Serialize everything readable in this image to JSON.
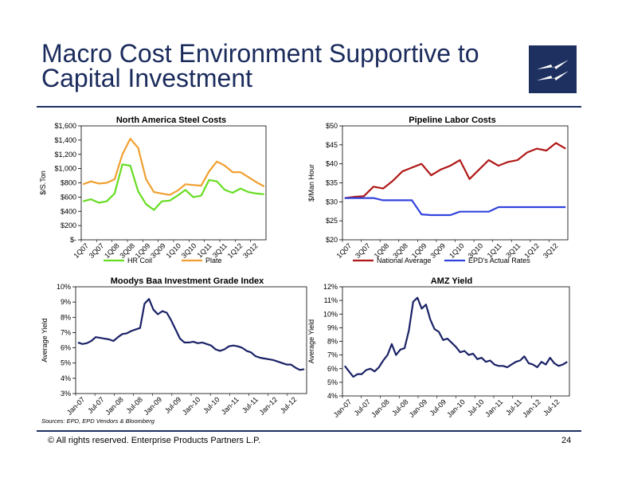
{
  "slide": {
    "title": "Macro Cost Environment Supportive to Capital Investment",
    "sources": "Sources:  EPD, EPD Vendors & Bloomberg",
    "footer": "©  All rights reserved. Enterprise Products Partners L.P.",
    "page_number": "24"
  },
  "chart_data": [
    {
      "id": "steel",
      "type": "line",
      "title": "North America Steel Costs",
      "ylabel": "$/S.Ton",
      "ylim": [
        0,
        1600
      ],
      "yticks": [
        0,
        200,
        400,
        600,
        800,
        1000,
        1200,
        1400,
        1600
      ],
      "ytick_labels": [
        "$-",
        "$200",
        "$400",
        "$600",
        "$800",
        "$1,000",
        "$1,200",
        "$1,400",
        "$1,600"
      ],
      "x_labels": [
        "1Q07",
        "3Q07",
        "1Q08",
        "3Q08",
        "1Q09",
        "3Q09",
        "1Q10",
        "3Q10",
        "1Q11",
        "3Q11",
        "1Q12",
        "3Q12"
      ],
      "x_count": 24,
      "legend": "bottom",
      "series": [
        {
          "name": "HR Coil",
          "color": "#66dd22",
          "values": [
            540,
            570,
            520,
            540,
            650,
            1060,
            1040,
            680,
            500,
            420,
            540,
            550,
            620,
            700,
            600,
            620,
            840,
            820,
            700,
            660,
            720,
            670,
            650,
            640
          ]
        },
        {
          "name": "Plate",
          "color": "#f0a030",
          "values": [
            780,
            820,
            790,
            800,
            850,
            1200,
            1420,
            1290,
            850,
            670,
            650,
            630,
            690,
            780,
            770,
            760,
            960,
            1100,
            1040,
            950,
            950,
            880,
            810,
            750
          ]
        }
      ]
    },
    {
      "id": "labor",
      "type": "line",
      "title": "Pipeline Labor Costs",
      "ylabel": "$/Man Hour",
      "ylim": [
        20,
        50
      ],
      "yticks": [
        20,
        25,
        30,
        35,
        40,
        45,
        50
      ],
      "ytick_labels": [
        "$20",
        "$25",
        "$30",
        "$35",
        "$40",
        "$45",
        "$50"
      ],
      "x_labels": [
        "1Q07",
        "3Q07",
        "1Q08",
        "3Q08",
        "1Q09",
        "3Q09",
        "1Q10",
        "3Q10",
        "1Q11",
        "3Q11",
        "1Q12",
        "3Q12"
      ],
      "x_count": 24,
      "legend": "bottom",
      "series": [
        {
          "name": "National Average",
          "color": "#b01818",
          "values": [
            31,
            31.3,
            31.5,
            34,
            33.5,
            35.5,
            38,
            39,
            40,
            37,
            38.5,
            39.5,
            41,
            36,
            38.5,
            41,
            39.5,
            40.5,
            41,
            43,
            44,
            43.5,
            45.5,
            44
          ]
        },
        {
          "name": "EPD's Actual Rates",
          "color": "#3344dd",
          "values": [
            31,
            31,
            31,
            31,
            30.4,
            30.4,
            30.4,
            30.4,
            26.7,
            26.5,
            26.5,
            26.5,
            27.4,
            27.4,
            27.4,
            27.4,
            28.6,
            28.6,
            28.6,
            28.6,
            28.6,
            28.6,
            28.6,
            28.6
          ]
        }
      ]
    },
    {
      "id": "moodys",
      "type": "line",
      "title": "Moodys Baa Investment Grade Index",
      "ylabel": "Average Yield",
      "ylim": [
        3,
        10
      ],
      "yticks": [
        3,
        4,
        5,
        6,
        7,
        8,
        9,
        10
      ],
      "ytick_labels": [
        "3%",
        "4%",
        "5%",
        "6%",
        "7%",
        "8%",
        "9%",
        "10%"
      ],
      "x_labels": [
        "Jan-07",
        "Jul-07",
        "Jan-08",
        "Jul-08",
        "Jan-09",
        "Jul-09",
        "Jan-10",
        "Jul-10",
        "Jan-11",
        "Jul-11",
        "Jan-12",
        "Jul-12"
      ],
      "series": [
        {
          "name": "",
          "color": "#1a2266",
          "values": [
            6.35,
            6.25,
            6.3,
            6.45,
            6.7,
            6.65,
            6.6,
            6.55,
            6.45,
            6.7,
            6.9,
            6.95,
            7.1,
            7.2,
            7.3,
            8.9,
            9.2,
            8.5,
            8.2,
            8.4,
            8.3,
            7.8,
            7.2,
            6.6,
            6.35,
            6.35,
            6.4,
            6.3,
            6.35,
            6.25,
            6.15,
            5.9,
            5.8,
            5.9,
            6.1,
            6.15,
            6.1,
            6.0,
            5.8,
            5.7,
            5.45,
            5.35,
            5.3,
            5.25,
            5.2,
            5.1,
            5.0,
            4.9,
            4.9,
            4.7,
            4.55,
            4.6
          ]
        }
      ]
    },
    {
      "id": "amz",
      "type": "line",
      "title": "AMZ Yield",
      "ylabel": "Average Yield",
      "ylim": [
        4,
        12
      ],
      "yticks": [
        4,
        5,
        6,
        7,
        8,
        9,
        10,
        11,
        12
      ],
      "ytick_labels": [
        "4%",
        "5%",
        "6%",
        "7%",
        "8%",
        "9%",
        "10%",
        "11%",
        "12%"
      ],
      "x_labels": [
        "Jan-07",
        "Jul-07",
        "Jan-08",
        "Jul-08",
        "Jan-09",
        "Jul-09",
        "Jan-10",
        "Jul-10",
        "Jan-11",
        "Jul-11",
        "Jan-12",
        "Jul-12"
      ],
      "series": [
        {
          "name": "",
          "color": "#1a2266",
          "values": [
            6.2,
            5.8,
            5.4,
            5.6,
            5.6,
            5.9,
            6.0,
            5.8,
            6.1,
            6.6,
            7.0,
            7.8,
            7.0,
            7.4,
            7.5,
            8.8,
            10.9,
            11.2,
            10.4,
            10.7,
            9.6,
            8.9,
            8.7,
            8.1,
            8.2,
            7.9,
            7.6,
            7.2,
            7.3,
            7.0,
            7.1,
            6.7,
            6.8,
            6.5,
            6.6,
            6.3,
            6.2,
            6.2,
            6.1,
            6.3,
            6.5,
            6.6,
            6.9,
            6.4,
            6.3,
            6.1,
            6.5,
            6.3,
            6.8,
            6.4,
            6.2,
            6.3,
            6.5
          ]
        }
      ]
    }
  ]
}
